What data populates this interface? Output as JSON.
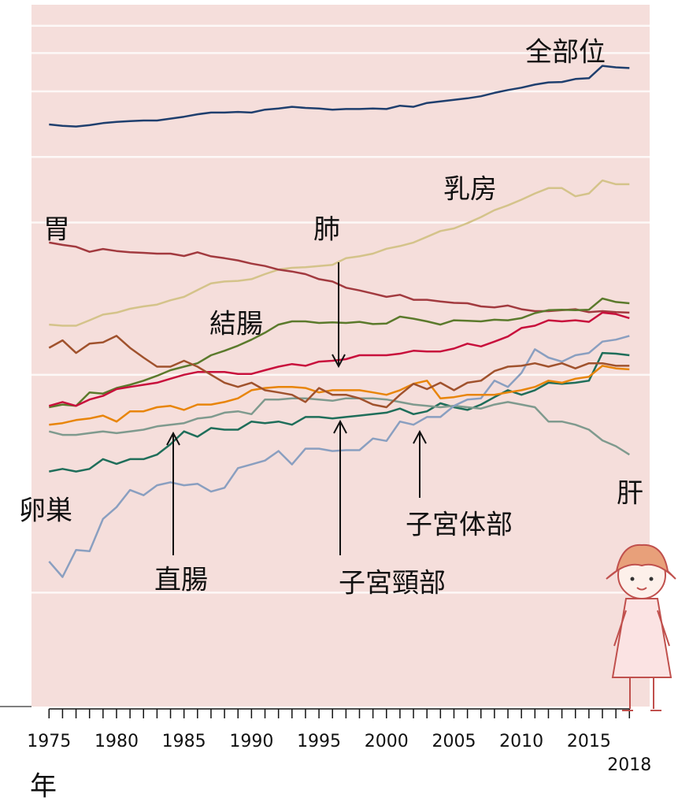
{
  "chart_data": {
    "type": "line",
    "x_label": "年",
    "x": [
      1975,
      1976,
      1977,
      1978,
      1979,
      1980,
      1981,
      1982,
      1983,
      1984,
      1985,
      1986,
      1987,
      1988,
      1989,
      1990,
      1991,
      1992,
      1993,
      1994,
      1995,
      1996,
      1997,
      1998,
      1999,
      2000,
      2001,
      2002,
      2003,
      2004,
      2005,
      2006,
      2007,
      2008,
      2009,
      2010,
      2011,
      2012,
      2013,
      2014,
      2015,
      2016,
      2017,
      2018
    ],
    "xlim": [
      1973.7,
      2019.5
    ],
    "xticks": [
      1975,
      1980,
      1985,
      1990,
      1995,
      2000,
      2005,
      2010,
      2015,
      2018
    ],
    "ylim": [
      0.3,
      500
    ],
    "log_scale": true,
    "grid": true,
    "yticks": [
      1,
      10,
      50,
      100,
      200,
      300,
      400
    ],
    "series": [
      {
        "name": "全部位",
        "color": "#1f3f6e",
        "values": [
          141,
          139,
          138,
          140,
          143,
          145,
          146,
          147,
          147,
          150,
          153,
          157,
          160,
          160,
          161,
          160,
          165,
          167,
          170,
          168,
          167,
          165,
          166,
          166,
          167,
          166,
          172,
          170,
          177,
          180,
          183,
          186,
          190,
          197,
          203,
          208,
          215,
          220,
          221,
          228,
          230,
          262,
          258,
          256
        ]
      },
      {
        "name": "乳房",
        "color": "#d4c38a",
        "values": [
          17.0,
          16.8,
          16.8,
          17.8,
          18.9,
          19.3,
          20.1,
          20.6,
          21,
          22,
          22.8,
          24.5,
          26.3,
          26.8,
          27,
          27.5,
          29,
          30.4,
          31,
          31.2,
          31.6,
          32,
          34.3,
          35,
          36,
          37.9,
          39,
          40.5,
          43,
          45.7,
          47,
          49.7,
          53,
          57,
          60,
          63.7,
          68,
          72,
          72,
          66,
          68,
          78,
          75,
          75
        ]
      },
      {
        "name": "胃",
        "color": "#a23a3f",
        "values": [
          40.5,
          39.5,
          38.7,
          36.7,
          37.8,
          37,
          36.5,
          36.3,
          36,
          36,
          35.1,
          36.5,
          35,
          34.3,
          33.5,
          32.4,
          31.6,
          30.4,
          29.8,
          29,
          27.5,
          26.8,
          25.1,
          24.4,
          23.6,
          22.8,
          23.3,
          22.1,
          22.1,
          21.7,
          21.4,
          21.3,
          20.6,
          20.4,
          20.8,
          20,
          19.6,
          19.6,
          19.8,
          20,
          19.4,
          19.6,
          19.4,
          19.3
        ]
      },
      {
        "name": "結腸",
        "color": "#5b7a2c",
        "values": [
          7.1,
          7.3,
          7.2,
          8.3,
          8.2,
          8.7,
          9.0,
          9.4,
          9.9,
          10.5,
          10.9,
          11.3,
          12.3,
          12.9,
          13.6,
          14.5,
          15.6,
          17.0,
          17.6,
          17.6,
          17.3,
          17.4,
          17.3,
          17.5,
          17.1,
          17.2,
          18.5,
          18.1,
          17.6,
          17.0,
          17.8,
          17.7,
          17.6,
          17.9,
          17.8,
          18.2,
          19.2,
          19.8,
          19.9,
          19.8,
          19.9,
          22.4,
          21.6,
          21.3
        ]
      },
      {
        "name": "肺",
        "color": "#c8103c",
        "values": [
          7.2,
          7.5,
          7.2,
          7.7,
          8.0,
          8.6,
          8.8,
          9.0,
          9.2,
          9.6,
          10.0,
          10.3,
          10.3,
          10.3,
          10.1,
          10.1,
          10.5,
          10.9,
          11.2,
          11.0,
          11.5,
          11.6,
          11.8,
          12.3,
          12.3,
          12.3,
          12.5,
          12.9,
          12.8,
          12.8,
          13.2,
          13.9,
          13.5,
          14.2,
          15.0,
          16.4,
          16.8,
          17.8,
          17.6,
          17.8,
          17.5,
          19.3,
          19.0,
          18.2
        ]
      },
      {
        "name": "卵巣",
        "color": "#1f6e5a",
        "values": [
          3.6,
          3.7,
          3.6,
          3.7,
          4.1,
          3.9,
          4.1,
          4.1,
          4.3,
          4.8,
          5.5,
          5.2,
          5.7,
          5.6,
          5.6,
          6.1,
          6.0,
          6.1,
          5.9,
          6.4,
          6.4,
          6.3,
          6.4,
          6.5,
          6.6,
          6.7,
          7.0,
          6.6,
          6.8,
          7.4,
          7.1,
          6.9,
          7.3,
          7.9,
          8.5,
          8.1,
          8.5,
          9.2,
          9.1,
          9.2,
          9.4,
          12.6,
          12.5,
          12.3
        ]
      },
      {
        "name": "肝",
        "color": "#7f9a8e",
        "values": [
          5.5,
          5.3,
          5.3,
          5.4,
          5.5,
          5.4,
          5.5,
          5.6,
          5.8,
          5.9,
          6.0,
          6.3,
          6.4,
          6.7,
          6.8,
          6.6,
          7.7,
          7.7,
          7.8,
          7.8,
          7.7,
          7.6,
          7.8,
          7.8,
          7.8,
          7.7,
          7.5,
          7.3,
          7.2,
          7.1,
          7.2,
          7.1,
          7.0,
          7.3,
          7.5,
          7.3,
          7.1,
          6.1,
          6.1,
          5.9,
          5.6,
          5.0,
          4.7,
          4.3
        ]
      },
      {
        "name": "子宮体部",
        "color": "#8a9fc0",
        "values": [
          1.39,
          1.18,
          1.57,
          1.55,
          2.18,
          2.47,
          2.96,
          2.8,
          3.11,
          3.21,
          3.11,
          3.16,
          2.91,
          3.03,
          3.73,
          3.88,
          4.04,
          4.47,
          3.88,
          4.58,
          4.58,
          4.47,
          4.51,
          4.51,
          5.1,
          4.97,
          6.1,
          5.9,
          6.4,
          6.4,
          7.2,
          7.7,
          7.8,
          9.4,
          8.8,
          10.2,
          13.1,
          12.0,
          11.5,
          12.3,
          12.6,
          14.2,
          14.5,
          15.1
        ]
      },
      {
        "name": "直腸",
        "color": "#e8850a",
        "values": [
          5.9,
          6.0,
          6.2,
          6.3,
          6.5,
          6.1,
          6.8,
          6.8,
          7.1,
          7.2,
          6.9,
          7.3,
          7.3,
          7.5,
          7.8,
          8.5,
          8.7,
          8.8,
          8.8,
          8.7,
          8.3,
          8.5,
          8.5,
          8.5,
          8.3,
          8.1,
          8.5,
          9.1,
          9.4,
          7.8,
          7.9,
          8.1,
          8.1,
          8.1,
          8.3,
          8.5,
          8.8,
          9.4,
          9.2,
          9.6,
          9.8,
          11.0,
          10.7,
          10.6
        ]
      },
      {
        "name": "子宮頸部",
        "color": "#a0522d",
        "values": [
          13.3,
          14.4,
          12.6,
          13.9,
          14.1,
          15.1,
          13.3,
          12.0,
          10.9,
          10.9,
          11.6,
          10.9,
          10,
          9.2,
          8.8,
          9.2,
          8.5,
          8.3,
          8.1,
          7.5,
          8.7,
          8.1,
          8.1,
          7.8,
          7.3,
          7.1,
          8.1,
          9.1,
          8.6,
          9.2,
          8.5,
          9.2,
          9.4,
          10.4,
          10.9,
          11.0,
          11.3,
          10.9,
          11.3,
          10.7,
          11.3,
          11.3,
          11.0,
          11.0
        ]
      }
    ]
  }
}
